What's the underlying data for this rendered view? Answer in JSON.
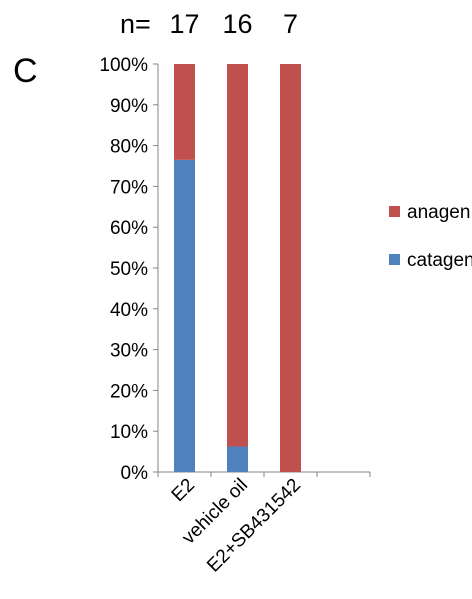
{
  "panel_label": "C",
  "n_prefix": "n=",
  "chart_data": {
    "type": "bar",
    "stacked": true,
    "percent": true,
    "categories": [
      "E2",
      "vehicle oil",
      "E2+SB431542"
    ],
    "n_values": [
      "17",
      "16",
      "7"
    ],
    "series": [
      {
        "name": "catagen",
        "color": "#4f81bd",
        "values": [
          76.5,
          6.25,
          0
        ]
      },
      {
        "name": "anagen",
        "color": "#c0504d",
        "values": [
          23.5,
          93.75,
          100
        ]
      }
    ],
    "ylim": [
      0,
      100
    ],
    "yticks": [
      "0%",
      "10%",
      "20%",
      "30%",
      "40%",
      "50%",
      "60%",
      "70%",
      "80%",
      "90%",
      "100%"
    ],
    "legend": [
      "anagen",
      "catagen"
    ],
    "legend_position": "right",
    "grid": false,
    "title": "",
    "xlabel": "",
    "ylabel": ""
  }
}
